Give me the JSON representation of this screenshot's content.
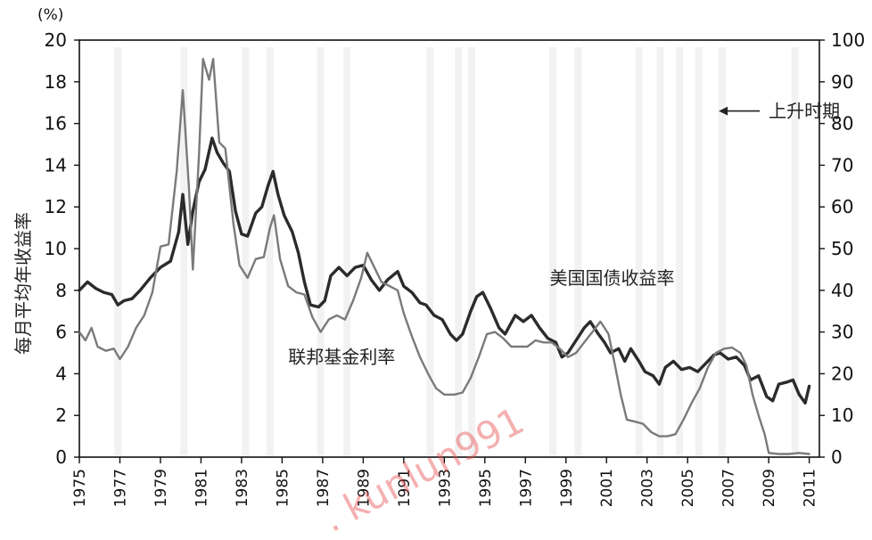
{
  "chart_data": {
    "type": "line",
    "ylabel": "每月平均年收益率",
    "yunit": "(%)",
    "xlim": [
      1975,
      2011.5
    ],
    "ylim": [
      0,
      20
    ],
    "y2lim": [
      0,
      100
    ],
    "y_ticks": [
      "0",
      "2",
      "4",
      "6",
      "8",
      "10",
      "12",
      "14",
      "16",
      "18",
      "20"
    ],
    "y2_ticks": [
      "0",
      "10",
      "20",
      "30",
      "40",
      "50",
      "60",
      "70",
      "80",
      "90",
      "100"
    ],
    "x_ticks": [
      "1975",
      "1977",
      "1979",
      "1981",
      "1983",
      "1985",
      "1987",
      "1989",
      "1991",
      "1993",
      "1995",
      "1997",
      "1999",
      "2001",
      "2003",
      "2005",
      "2007",
      "2009",
      "2011"
    ],
    "grid": false,
    "shaded_bands": [
      {
        "x": 1976.9,
        "value": 0
      },
      {
        "x": 1980.15,
        "value": 0
      },
      {
        "x": 1983.2,
        "value": 0
      },
      {
        "x": 1984.4,
        "value": 0
      },
      {
        "x": 1986.9,
        "value": 0
      },
      {
        "x": 1988.2,
        "value": 0
      },
      {
        "x": 1992.3,
        "value": 0
      },
      {
        "x": 1993.7,
        "value": 93
      },
      {
        "x": 1994.35,
        "value": 0
      },
      {
        "x": 1998.35,
        "value": 53
      },
      {
        "x": 1999.6,
        "value": 0
      },
      {
        "x": 2002.6,
        "value": 0
      },
      {
        "x": 2003.65,
        "value": 0
      },
      {
        "x": 2004.6,
        "value": 0
      },
      {
        "x": 2005.55,
        "value": 0
      },
      {
        "x": 2006.7,
        "value": 0
      },
      {
        "x": 2010.3,
        "value": 0
      }
    ],
    "series": [
      {
        "name": "美国国债收益率",
        "color": "#2b2b2b",
        "points": [
          [
            1975.0,
            8.0
          ],
          [
            1975.4,
            8.4
          ],
          [
            1975.8,
            8.1
          ],
          [
            1976.2,
            7.9
          ],
          [
            1976.6,
            7.8
          ],
          [
            1976.9,
            7.3
          ],
          [
            1977.2,
            7.5
          ],
          [
            1977.6,
            7.6
          ],
          [
            1978.0,
            8.0
          ],
          [
            1978.5,
            8.6
          ],
          [
            1979.0,
            9.1
          ],
          [
            1979.5,
            9.4
          ],
          [
            1979.9,
            10.8
          ],
          [
            1980.1,
            12.6
          ],
          [
            1980.35,
            10.2
          ],
          [
            1980.6,
            11.8
          ],
          [
            1980.9,
            13.2
          ],
          [
            1981.2,
            13.8
          ],
          [
            1981.55,
            15.3
          ],
          [
            1981.8,
            14.6
          ],
          [
            1982.1,
            14.1
          ],
          [
            1982.4,
            13.7
          ],
          [
            1982.7,
            11.8
          ],
          [
            1983.0,
            10.7
          ],
          [
            1983.3,
            10.6
          ],
          [
            1983.7,
            11.7
          ],
          [
            1984.0,
            12.0
          ],
          [
            1984.3,
            13.0
          ],
          [
            1984.55,
            13.7
          ],
          [
            1984.8,
            12.6
          ],
          [
            1985.1,
            11.6
          ],
          [
            1985.5,
            10.8
          ],
          [
            1985.8,
            9.8
          ],
          [
            1986.1,
            8.4
          ],
          [
            1986.4,
            7.3
          ],
          [
            1986.8,
            7.2
          ],
          [
            1987.1,
            7.5
          ],
          [
            1987.4,
            8.7
          ],
          [
            1987.8,
            9.1
          ],
          [
            1988.2,
            8.7
          ],
          [
            1988.6,
            9.1
          ],
          [
            1989.0,
            9.2
          ],
          [
            1989.4,
            8.5
          ],
          [
            1989.8,
            8.0
          ],
          [
            1990.2,
            8.5
          ],
          [
            1990.7,
            8.9
          ],
          [
            1991.0,
            8.2
          ],
          [
            1991.4,
            7.9
          ],
          [
            1991.8,
            7.4
          ],
          [
            1992.1,
            7.3
          ],
          [
            1992.5,
            6.8
          ],
          [
            1992.9,
            6.6
          ],
          [
            1993.3,
            5.9
          ],
          [
            1993.6,
            5.6
          ],
          [
            1993.9,
            5.9
          ],
          [
            1994.3,
            7.0
          ],
          [
            1994.6,
            7.7
          ],
          [
            1994.9,
            7.9
          ],
          [
            1995.3,
            7.1
          ],
          [
            1995.7,
            6.2
          ],
          [
            1996.0,
            5.9
          ],
          [
            1996.5,
            6.8
          ],
          [
            1996.9,
            6.5
          ],
          [
            1997.3,
            6.8
          ],
          [
            1997.7,
            6.2
          ],
          [
            1998.1,
            5.7
          ],
          [
            1998.5,
            5.5
          ],
          [
            1998.8,
            4.8
          ],
          [
            1999.1,
            5.0
          ],
          [
            1999.5,
            5.6
          ],
          [
            1999.9,
            6.2
          ],
          [
            2000.2,
            6.5
          ],
          [
            2000.6,
            5.9
          ],
          [
            2000.9,
            5.5
          ],
          [
            2001.2,
            5.0
          ],
          [
            2001.6,
            5.2
          ],
          [
            2001.9,
            4.6
          ],
          [
            2002.2,
            5.2
          ],
          [
            2002.6,
            4.6
          ],
          [
            2002.9,
            4.1
          ],
          [
            2003.3,
            3.9
          ],
          [
            2003.6,
            3.5
          ],
          [
            2003.9,
            4.3
          ],
          [
            2004.3,
            4.6
          ],
          [
            2004.7,
            4.2
          ],
          [
            2005.1,
            4.3
          ],
          [
            2005.5,
            4.1
          ],
          [
            2005.9,
            4.5
          ],
          [
            2006.3,
            4.9
          ],
          [
            2006.6,
            5.0
          ],
          [
            2007.0,
            4.7
          ],
          [
            2007.4,
            4.8
          ],
          [
            2007.8,
            4.4
          ],
          [
            2008.1,
            3.7
          ],
          [
            2008.5,
            3.9
          ],
          [
            2008.9,
            2.9
          ],
          [
            2009.2,
            2.7
          ],
          [
            2009.5,
            3.5
          ],
          [
            2009.9,
            3.6
          ],
          [
            2010.2,
            3.7
          ],
          [
            2010.5,
            3.0
          ],
          [
            2010.8,
            2.6
          ],
          [
            2011.0,
            3.4
          ]
        ]
      },
      {
        "name": "联邦基金利率",
        "color": "#7a7a7a",
        "points": [
          [
            1975.0,
            6.0
          ],
          [
            1975.3,
            5.6
          ],
          [
            1975.6,
            6.2
          ],
          [
            1975.9,
            5.3
          ],
          [
            1976.3,
            5.1
          ],
          [
            1976.7,
            5.2
          ],
          [
            1977.0,
            4.7
          ],
          [
            1977.4,
            5.3
          ],
          [
            1977.8,
            6.2
          ],
          [
            1978.2,
            6.8
          ],
          [
            1978.6,
            7.9
          ],
          [
            1979.0,
            10.1
          ],
          [
            1979.4,
            10.2
          ],
          [
            1979.8,
            13.7
          ],
          [
            1980.1,
            17.6
          ],
          [
            1980.4,
            13.0
          ],
          [
            1980.6,
            9.0
          ],
          [
            1980.9,
            14.5
          ],
          [
            1981.1,
            19.1
          ],
          [
            1981.4,
            18.1
          ],
          [
            1981.6,
            19.1
          ],
          [
            1981.9,
            15.1
          ],
          [
            1982.2,
            14.8
          ],
          [
            1982.6,
            11.2
          ],
          [
            1982.9,
            9.2
          ],
          [
            1983.3,
            8.6
          ],
          [
            1983.7,
            9.5
          ],
          [
            1984.1,
            9.6
          ],
          [
            1984.4,
            11.0
          ],
          [
            1984.6,
            11.6
          ],
          [
            1984.9,
            9.5
          ],
          [
            1985.3,
            8.2
          ],
          [
            1985.7,
            7.9
          ],
          [
            1986.1,
            7.8
          ],
          [
            1986.5,
            6.7
          ],
          [
            1986.9,
            6.0
          ],
          [
            1987.3,
            6.6
          ],
          [
            1987.7,
            6.8
          ],
          [
            1988.1,
            6.6
          ],
          [
            1988.5,
            7.5
          ],
          [
            1988.9,
            8.6
          ],
          [
            1989.2,
            9.8
          ],
          [
            1989.5,
            9.2
          ],
          [
            1989.9,
            8.4
          ],
          [
            1990.3,
            8.2
          ],
          [
            1990.7,
            8.0
          ],
          [
            1991.0,
            6.9
          ],
          [
            1991.4,
            5.8
          ],
          [
            1991.8,
            4.8
          ],
          [
            1992.2,
            4.0
          ],
          [
            1992.6,
            3.3
          ],
          [
            1993.0,
            3.0
          ],
          [
            1993.5,
            3.0
          ],
          [
            1993.9,
            3.1
          ],
          [
            1994.3,
            3.8
          ],
          [
            1994.7,
            4.8
          ],
          [
            1995.1,
            5.9
          ],
          [
            1995.5,
            6.0
          ],
          [
            1995.9,
            5.7
          ],
          [
            1996.3,
            5.3
          ],
          [
            1996.7,
            5.3
          ],
          [
            1997.1,
            5.3
          ],
          [
            1997.5,
            5.6
          ],
          [
            1997.9,
            5.5
          ],
          [
            1998.3,
            5.5
          ],
          [
            1998.7,
            5.2
          ],
          [
            1999.1,
            4.8
          ],
          [
            1999.5,
            5.0
          ],
          [
            1999.9,
            5.5
          ],
          [
            2000.3,
            6.0
          ],
          [
            2000.7,
            6.5
          ],
          [
            2001.1,
            5.9
          ],
          [
            2001.4,
            4.5
          ],
          [
            2001.7,
            3.0
          ],
          [
            2002.0,
            1.8
          ],
          [
            2002.4,
            1.7
          ],
          [
            2002.8,
            1.6
          ],
          [
            2003.2,
            1.2
          ],
          [
            2003.6,
            1.0
          ],
          [
            2004.0,
            1.0
          ],
          [
            2004.4,
            1.1
          ],
          [
            2004.8,
            1.8
          ],
          [
            2005.2,
            2.6
          ],
          [
            2005.6,
            3.3
          ],
          [
            2006.0,
            4.3
          ],
          [
            2006.4,
            5.0
          ],
          [
            2006.8,
            5.2
          ],
          [
            2007.2,
            5.25
          ],
          [
            2007.6,
            5.0
          ],
          [
            2007.9,
            4.4
          ],
          [
            2008.2,
            3.0
          ],
          [
            2008.5,
            2.0
          ],
          [
            2008.8,
            1.1
          ],
          [
            2009.0,
            0.2
          ],
          [
            2009.5,
            0.15
          ],
          [
            2010.0,
            0.15
          ],
          [
            2010.5,
            0.2
          ],
          [
            2011.0,
            0.15
          ]
        ]
      }
    ],
    "annotations": [
      {
        "text": "美国国债收益率",
        "x": 1998.2,
        "y": 8.3
      },
      {
        "text": "联邦基金利率",
        "x": 1985.3,
        "y": 4.5
      },
      {
        "text": "上升时期",
        "x": 2009.0,
        "y": 16.3,
        "arrow": "left"
      }
    ],
    "legend": "none"
  },
  "watermark": {
    "text": ". kunlun991"
  }
}
